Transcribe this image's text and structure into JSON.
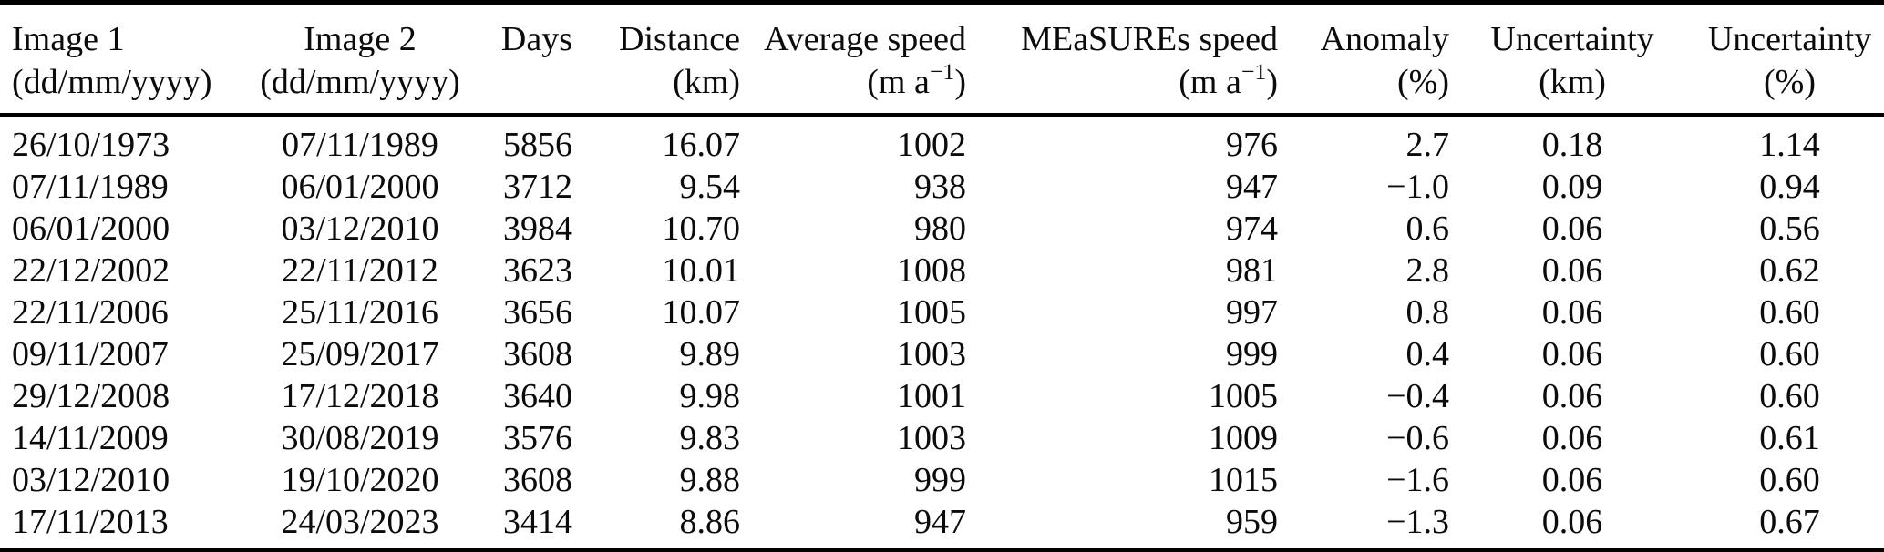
{
  "chart_data": {
    "type": "table",
    "title": "",
    "layout": {
      "grid": "horizontal-rules-only",
      "rule_color": "#000000",
      "text_color": "#0b0b0b",
      "background": "#ffffff"
    },
    "columns": [
      {
        "label": "Image 1",
        "unit_prefix": "(dd/mm/yyyy)",
        "unit_sup": "",
        "unit_suffix": "",
        "align": "left"
      },
      {
        "label": "Image 2",
        "unit_prefix": "(dd/mm/yyyy)",
        "unit_sup": "",
        "unit_suffix": "",
        "align": "center"
      },
      {
        "label": "Days",
        "unit_prefix": "",
        "unit_sup": "",
        "unit_suffix": "",
        "align": "right"
      },
      {
        "label": "Distance",
        "unit_prefix": "(km)",
        "unit_sup": "",
        "unit_suffix": "",
        "align": "right"
      },
      {
        "label": "Average speed",
        "unit_prefix": "(m a",
        "unit_sup": "−1",
        "unit_suffix": ")",
        "align": "right"
      },
      {
        "label": "MEaSUREs speed",
        "unit_prefix": "(m a",
        "unit_sup": "−1",
        "unit_suffix": ")",
        "align": "right"
      },
      {
        "label": "Anomaly",
        "unit_prefix": "(%)",
        "unit_sup": "",
        "unit_suffix": "",
        "align": "right"
      },
      {
        "label": "Uncertainty",
        "unit_prefix": "(km)",
        "unit_sup": "",
        "unit_suffix": "",
        "align": "center"
      },
      {
        "label": "Uncertainty",
        "unit_prefix": "(%)",
        "unit_sup": "",
        "unit_suffix": "",
        "align": "center"
      }
    ],
    "rows": [
      [
        "26/10/1973",
        "07/11/1989",
        "5856",
        "16.07",
        "1002",
        "976",
        "2.7",
        "0.18",
        "1.14"
      ],
      [
        "07/11/1989",
        "06/01/2000",
        "3712",
        "9.54",
        "938",
        "947",
        "−1.0",
        "0.09",
        "0.94"
      ],
      [
        "06/01/2000",
        "03/12/2010",
        "3984",
        "10.70",
        "980",
        "974",
        "0.6",
        "0.06",
        "0.56"
      ],
      [
        "22/12/2002",
        "22/11/2012",
        "3623",
        "10.01",
        "1008",
        "981",
        "2.8",
        "0.06",
        "0.62"
      ],
      [
        "22/11/2006",
        "25/11/2016",
        "3656",
        "10.07",
        "1005",
        "997",
        "0.8",
        "0.06",
        "0.60"
      ],
      [
        "09/11/2007",
        "25/09/2017",
        "3608",
        "9.89",
        "1003",
        "999",
        "0.4",
        "0.06",
        "0.60"
      ],
      [
        "29/12/2008",
        "17/12/2018",
        "3640",
        "9.98",
        "1001",
        "1005",
        "−0.4",
        "0.06",
        "0.60"
      ],
      [
        "14/11/2009",
        "30/08/2019",
        "3576",
        "9.83",
        "1003",
        "1009",
        "−0.6",
        "0.06",
        "0.61"
      ],
      [
        "03/12/2010",
        "19/10/2020",
        "3608",
        "9.88",
        "999",
        "1015",
        "−1.6",
        "0.06",
        "0.60"
      ],
      [
        "17/11/2013",
        "24/03/2023",
        "3414",
        "8.86",
        "947",
        "959",
        "−1.3",
        "0.06",
        "0.67"
      ]
    ]
  }
}
